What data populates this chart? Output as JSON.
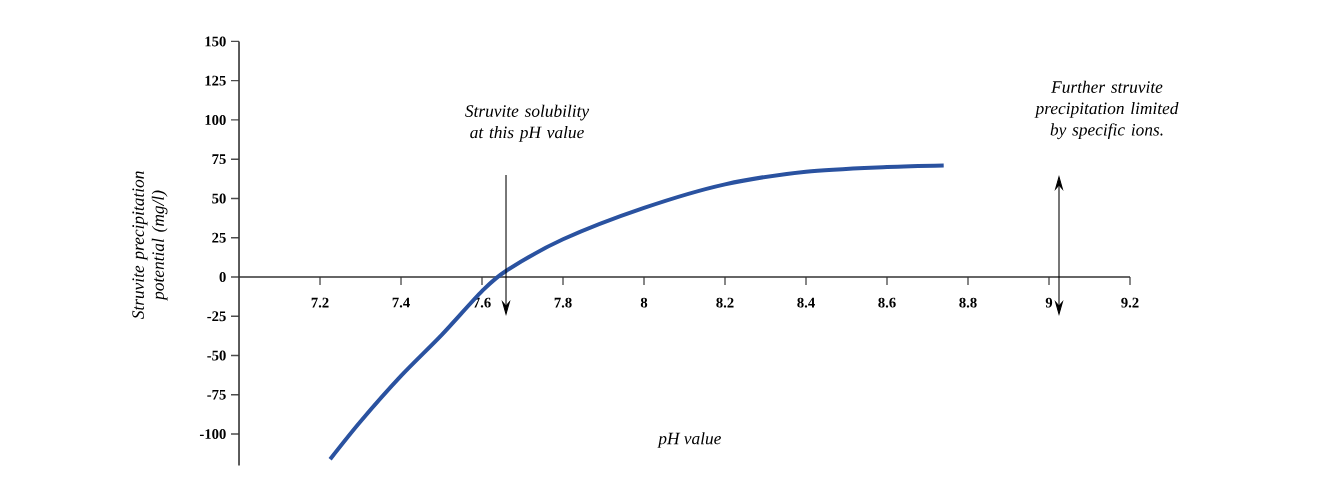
{
  "chart_data": {
    "type": "line",
    "xlabel": "pH value",
    "ylabel": "Struvite precipitation potential (mg/l)",
    "x": [
      7.225,
      7.3,
      7.4,
      7.5,
      7.6,
      7.66,
      7.8,
      8.0,
      8.2,
      8.4,
      8.6,
      8.74
    ],
    "series": [
      {
        "color": "#2a52a0",
        "values": [
          -116,
          -92,
          -63,
          -37,
          -9,
          4,
          24,
          44,
          59,
          67,
          70,
          71
        ]
      }
    ],
    "xlim": [
      7.0,
      9.2
    ],
    "ylim": [
      -120,
      150
    ],
    "xticks": [
      7.2,
      7.4,
      7.6,
      7.8,
      8,
      8.2,
      8.4,
      8.6,
      8.8,
      9,
      9.2
    ],
    "yticks": [
      -100,
      -75,
      -50,
      -25,
      0,
      25,
      50,
      75,
      100,
      125,
      150
    ],
    "annotations": [
      "Struvite solubility at this pH value",
      "Further struvite precipitation limited by specific ions."
    ],
    "grid": false,
    "marker": "none",
    "line_style": "solid"
  }
}
